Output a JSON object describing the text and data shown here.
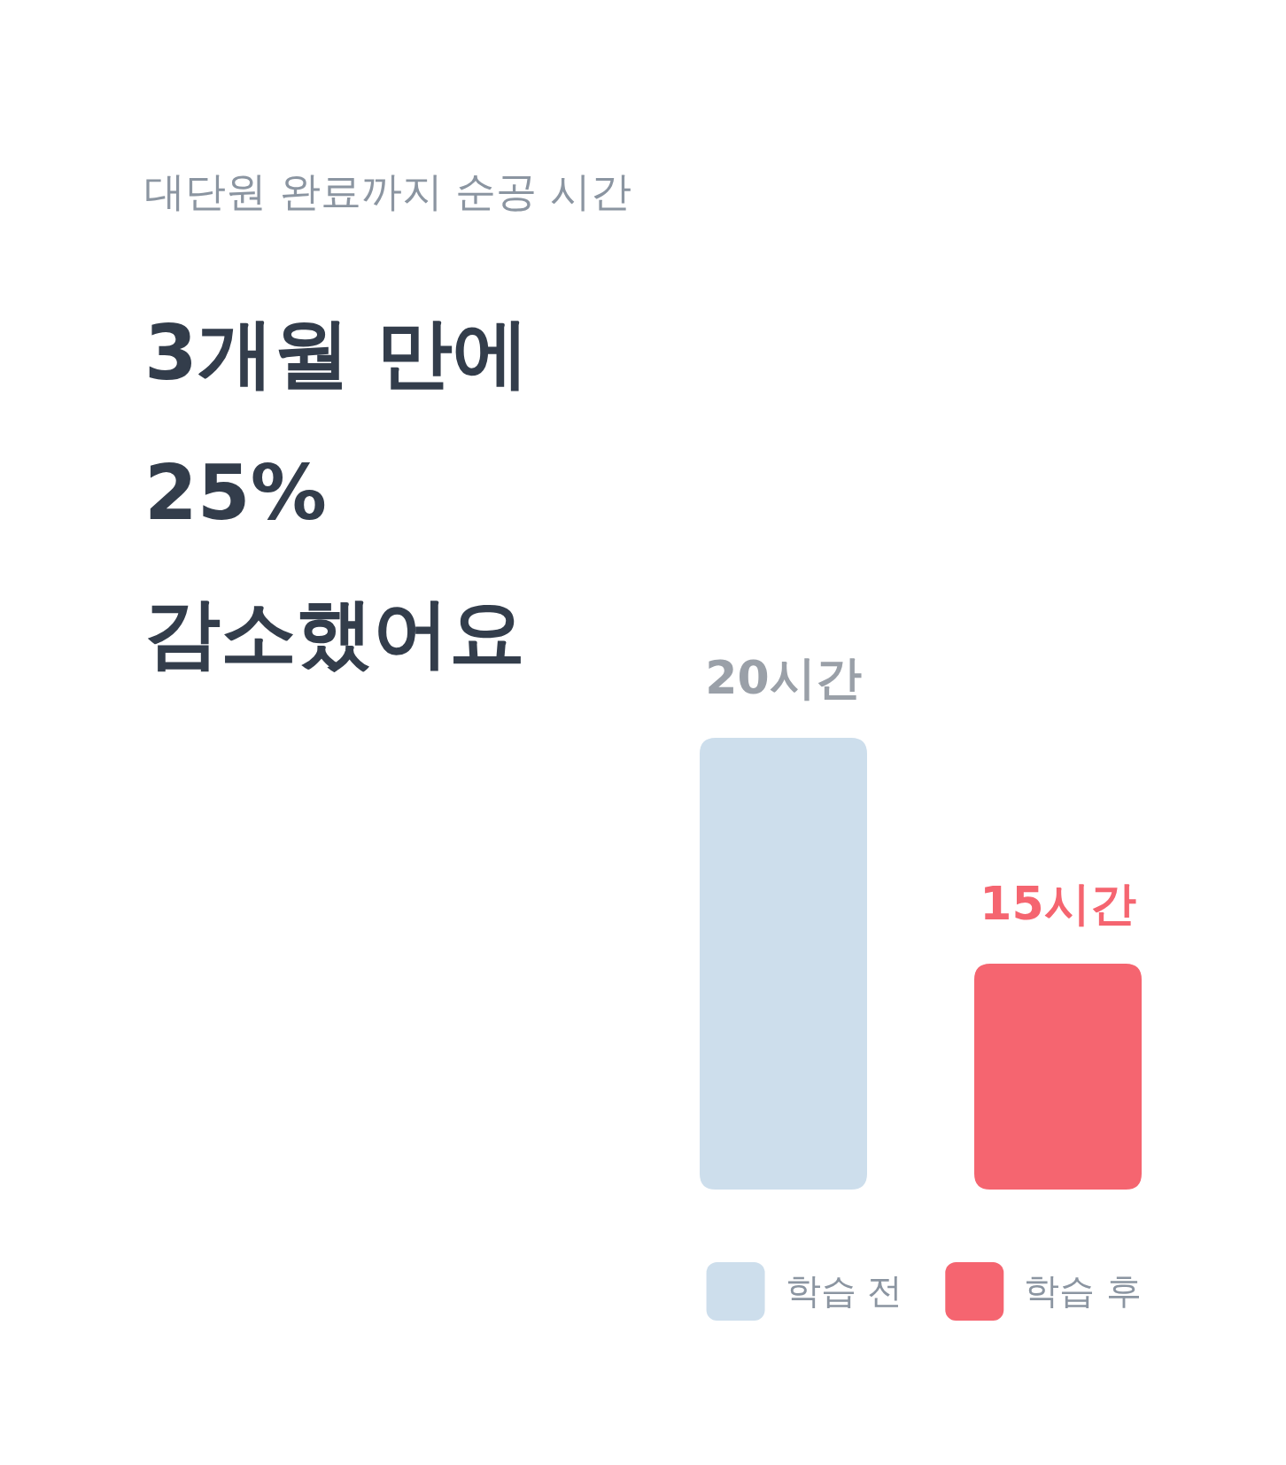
{
  "chart_data": {
    "type": "bar",
    "subtitle": "대단원 완료까지 순공 시간",
    "title": "3개월 만에 25% 감소했어요",
    "categories": [
      null
    ],
    "ylim": [
      10,
      20
    ],
    "series": [
      {
        "name": "학습 전",
        "color": "#cddeec",
        "values": [
          20
        ],
        "value_labels": [
          "20시간"
        ]
      },
      {
        "name": "학습 후",
        "color": "#f56570",
        "values": [
          15
        ],
        "value_labels": [
          "15시간"
        ]
      }
    ],
    "legend": "bottom"
  }
}
